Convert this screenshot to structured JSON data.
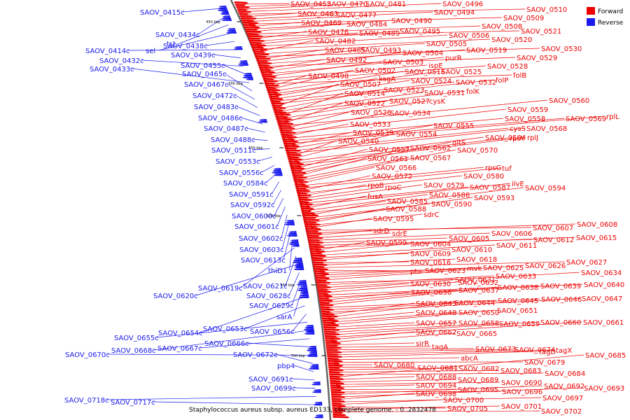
{
  "caption": "Staphylococcus aureus subsp. aureus ED133, complete genome. - 0..2832478",
  "legend": [
    {
      "label": "Forward",
      "color": "#ee0000"
    },
    {
      "label": "Reverse",
      "color": "#1a1aee"
    }
  ],
  "colors": {
    "forward": "#ee0000",
    "reverse": "#1a1aee",
    "backbone": "#777777"
  },
  "ticks": [
    "450 kbp",
    "500 kbp",
    "550 kbp",
    "600 kbp",
    "650 kbp",
    "700 kbp"
  ],
  "forward_labels": [
    "SAOV_0453",
    "SAOV_0470",
    "SAOV_0481",
    "SAOV_0496",
    "SAOV_0510",
    "SAOV_0463",
    "SAOV_0477",
    "SAOV_0494",
    "SAOV_0509",
    "SAOV_0469",
    "SAOV_0484",
    "SAOV_0490",
    "SAOV_0508",
    "SAOV_0521",
    "SAOV_0476",
    "SAOV_0489",
    "SAOV_0495",
    "SAOV_0506",
    "SAOV_0520",
    "SAOV_0482",
    "SAOV_0505",
    "SAOV_0530",
    "SAOV_0485",
    "SAOV_0493",
    "SAOV_0519",
    "SAOV_0529",
    "SAOV_0492",
    "SAOV_0504",
    "purR",
    "SAOV_0503",
    "ispE",
    "SAOV_0528",
    "folB",
    "SAOV_0498",
    "SAOV_0502",
    "SAOV_0516",
    "SAOV_0525",
    "ksgA",
    "SAOV_0524",
    "SAOV_0532",
    "folP",
    "SAOV_0507",
    "SAOV_0523",
    "SAOV_0531",
    "folK",
    "SAOV_0514",
    "SAOV_0527",
    "cysK",
    "SAOV_0522",
    "SAOV_0560",
    "SAOV_0526",
    "SAOV_0534",
    "SAOV_0559",
    "SAOV_0533",
    "SAOV_0558",
    "SAOV_0569",
    "rplL",
    "SAOV_0539",
    "SAOV_0555",
    "cysS",
    "SAOV_0568",
    "SAOV_0540",
    "SAOV_0554",
    "SAOV_0564",
    "rplA",
    "rplJ",
    "SAOV_0557",
    "SAOV_0562",
    "gltS",
    "SAOV_0561",
    "SAOV_0567",
    "SAOV_0570",
    "SAOV_0566",
    "rpsG",
    "tuf",
    "SAOV_0572",
    "SAOV_0580",
    "rpoB",
    "rpoC",
    "SAOV_0579",
    "SAOV_0587",
    "ilvE",
    "fusA",
    "SAOV_0586",
    "SAOV_0594",
    "SAOV_0585",
    "SAOV_0590",
    "SAOV_0593",
    "SAOV_0588",
    "sdrC",
    "SAOV_0595",
    "SAOV_0607",
    "SAOV_0608",
    "sdrD",
    "sdrE",
    "SAOV_0606",
    "SAOV_0605",
    "SAOV_0612",
    "SAOV_0615",
    "SAOV_0599",
    "SAOV_0604",
    "SAOV_0611",
    "SAOV_0609",
    "SAOV_0610",
    "SAOV_0616",
    "SAOV_0618",
    "SAOV_0627",
    "pta",
    "SAOV_0623",
    "mvk",
    "SAOV_0625",
    "SAOV_0626",
    "SAOV_0631",
    "SAOV_0633",
    "SAOV_0634",
    "SAOV_0630",
    "SAOV_0632",
    "SAOV_0639",
    "SAOV_0640",
    "SAOV_0636",
    "SAOV_0637",
    "SAOV_0638",
    "SAOV_0645",
    "SAOV_0646",
    "SAOV_0647",
    "SAOV_0643",
    "SAOV_0644",
    "SAOV_0648",
    "SAOV_0650",
    "SAOV_0651",
    "SAOV_0657",
    "SAOV_0658",
    "SAOV_0659",
    "SAOV_0660",
    "SAOV_0661",
    "SAOV_0662",
    "SAOV_0665",
    "sirR",
    "tagA",
    "SAOV_0673",
    "SAOV_0674",
    "tagX",
    "tagD",
    "abcA",
    "SAOV_0679",
    "SAOV_0680",
    "SAOV_0681",
    "SAOV_0682",
    "SAOV_0683",
    "SAOV_0684",
    "SAOV_0685",
    "SAOV_0688",
    "SAOV_0689",
    "SAOV_0690",
    "SAOV_0694",
    "SAOV_0695",
    "SAOV_0696",
    "SAOV_0692",
    "SAOV_0693",
    "SAOV_0698",
    "SAOV_0697",
    "SAOV_0700",
    "SAOV_0705",
    "SAOV_0701",
    "SAOV_0702"
  ],
  "reverse_labels": [
    "SAOV_0415c",
    "SAOV_0434c",
    "tst",
    "sel",
    "SAOV_0438c",
    "SAOV_0414c",
    "SAOV_0439c",
    "SAOV_0432c",
    "SAOV_0455c",
    "SAOV_0433c",
    "SAOV_0465c",
    "SAOV_0467c",
    "SAOV_0472c",
    "SAOV_0483c",
    "SAOV_0486c",
    "SAOV_0487c",
    "SAOV_0488c",
    "SAOV_0511c",
    "SAOV_0553c",
    "SAOV_0556c",
    "SAOV_0584c",
    "SAOV_0591c",
    "SAOV_0592c",
    "SAOV_0600c",
    "SAOV_0601c",
    "SAOV_0602c",
    "SAOV_0603c",
    "SAOV_0613c",
    "thiD1",
    "SAOV_0619c",
    "SAOV_0621c",
    "SAOV_0620c",
    "SAOV_0628c",
    "SAOV_0629c",
    "sarA",
    "SAOV_0654c",
    "SAOV_0653c",
    "SAOV_0656c",
    "SAOV_0655c",
    "SAOV_0668c",
    "SAOV_0667c",
    "SAOV_0666c",
    "SAOV_0670c",
    "SAOV_0672c",
    "pbp4",
    "SAOV_0691c",
    "SAOV_0699c",
    "SAOV_0718c",
    "SAOV_0717c"
  ]
}
